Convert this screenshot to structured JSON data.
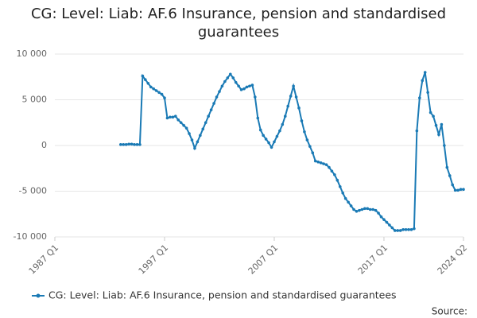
{
  "chart_data": {
    "type": "line",
    "title": "CG: Level: Liab: AF.6 Insurance, pension and standardised guarantees",
    "source": "Source:",
    "categories": [
      "1987 Q1",
      "1987 Q2",
      "1987 Q3",
      "1987 Q4",
      "1988 Q1",
      "1988 Q2",
      "1988 Q3",
      "1988 Q4",
      "1989 Q1",
      "1989 Q2",
      "1989 Q3",
      "1989 Q4",
      "1990 Q1",
      "1990 Q2",
      "1990 Q3",
      "1990 Q4",
      "1991 Q1",
      "1991 Q2",
      "1991 Q3",
      "1991 Q4",
      "1992 Q1",
      "1992 Q2",
      "1992 Q3",
      "1992 Q4",
      "1993 Q1",
      "1993 Q2",
      "1993 Q3",
      "1993 Q4",
      "1994 Q1",
      "1994 Q2",
      "1994 Q3",
      "1994 Q4",
      "1995 Q1",
      "1995 Q2",
      "1995 Q3",
      "1995 Q4",
      "1996 Q1",
      "1996 Q2",
      "1996 Q3",
      "1996 Q4",
      "1997 Q1",
      "1997 Q2",
      "1997 Q3",
      "1997 Q4",
      "1998 Q1",
      "1998 Q2",
      "1998 Q3",
      "1998 Q4",
      "1999 Q1",
      "1999 Q2",
      "1999 Q3",
      "1999 Q4",
      "2000 Q1",
      "2000 Q2",
      "2000 Q3",
      "2000 Q4",
      "2001 Q1",
      "2001 Q2",
      "2001 Q3",
      "2001 Q4",
      "2002 Q1",
      "2002 Q2",
      "2002 Q3",
      "2002 Q4",
      "2003 Q1",
      "2003 Q2",
      "2003 Q3",
      "2003 Q4",
      "2004 Q1",
      "2004 Q2",
      "2004 Q3",
      "2004 Q4",
      "2005 Q1",
      "2005 Q2",
      "2005 Q3",
      "2005 Q4",
      "2006 Q1",
      "2006 Q2",
      "2006 Q3",
      "2006 Q4",
      "2007 Q1",
      "2007 Q2",
      "2007 Q3",
      "2007 Q4",
      "2008 Q1",
      "2008 Q2",
      "2008 Q3",
      "2008 Q4",
      "2009 Q1",
      "2009 Q2",
      "2009 Q3",
      "2009 Q4",
      "2010 Q1",
      "2010 Q2",
      "2010 Q3",
      "2010 Q4",
      "2011 Q1",
      "2011 Q2",
      "2011 Q3",
      "2011 Q4",
      "2012 Q1",
      "2012 Q2",
      "2012 Q3",
      "2012 Q4",
      "2013 Q1",
      "2013 Q2",
      "2013 Q3",
      "2013 Q4",
      "2014 Q1",
      "2014 Q2",
      "2014 Q3",
      "2014 Q4",
      "2015 Q1",
      "2015 Q2",
      "2015 Q3",
      "2015 Q4",
      "2016 Q1",
      "2016 Q2",
      "2016 Q3",
      "2016 Q4",
      "2017 Q1",
      "2017 Q2",
      "2017 Q3",
      "2017 Q4",
      "2018 Q1",
      "2018 Q2",
      "2018 Q3",
      "2018 Q4",
      "2019 Q1",
      "2019 Q2",
      "2019 Q3",
      "2019 Q4",
      "2020 Q1",
      "2020 Q2",
      "2020 Q3",
      "2020 Q4",
      "2021 Q1",
      "2021 Q2",
      "2021 Q3",
      "2021 Q4",
      "2022 Q1",
      "2022 Q2",
      "2022 Q3",
      "2022 Q4",
      "2023 Q1",
      "2023 Q2",
      "2023 Q3",
      "2023 Q4",
      "2024 Q1",
      "2024 Q2"
    ],
    "series": [
      {
        "name": "CG: Level: Liab: AF.6 Insurance, pension and standardised guarantees",
        "color": "#1a7ab5",
        "values": [
          null,
          null,
          null,
          null,
          null,
          null,
          null,
          null,
          null,
          null,
          null,
          null,
          null,
          null,
          null,
          null,
          null,
          null,
          null,
          null,
          null,
          null,
          null,
          null,
          100,
          100,
          100,
          150,
          150,
          100,
          100,
          100,
          7600,
          7200,
          6800,
          6400,
          6200,
          6000,
          5800,
          5600,
          5200,
          3000,
          3100,
          3100,
          3200,
          2800,
          2500,
          2200,
          1900,
          1300,
          600,
          -300,
          400,
          1100,
          1800,
          2500,
          3200,
          3900,
          4600,
          5300,
          5900,
          6500,
          7000,
          7400,
          7800,
          7400,
          6900,
          6500,
          6100,
          6200,
          6400,
          6500,
          6600,
          5300,
          3000,
          1700,
          1100,
          700,
          300,
          -200,
          400,
          1000,
          1600,
          2300,
          3200,
          4300,
          5400,
          6500,
          5300,
          4100,
          2700,
          1500,
          600,
          -100,
          -800,
          -1700,
          -1800,
          -1900,
          -2000,
          -2100,
          -2400,
          -2800,
          -3200,
          -3800,
          -4500,
          -5200,
          -5800,
          -6200,
          -6600,
          -7000,
          -7200,
          -7100,
          -7000,
          -6900,
          -6900,
          -7000,
          -7000,
          -7100,
          -7400,
          -7800,
          -8100,
          -8400,
          -8700,
          -9000,
          -9300,
          -9300,
          -9300,
          -9200,
          -9200,
          -9200,
          -9200,
          -9100,
          1600,
          5200,
          7100,
          8000,
          5800,
          3600,
          3200,
          2200,
          1200,
          2300,
          0,
          -2400,
          -3300,
          -4300,
          -4900,
          -4900,
          -4800,
          -4800
        ]
      }
    ],
    "xticks": [
      "1987 Q1",
      "1997 Q1",
      "2007 Q1",
      "2017 Q1",
      "2024 Q2"
    ],
    "ylim": [
      -10000,
      10000
    ],
    "yticks": [
      {
        "value": -10000,
        "label": "-10 000"
      },
      {
        "value": -5000,
        "label": "-5 000"
      },
      0,
      {
        "value": 5000,
        "label": "5 000"
      },
      {
        "value": 10000,
        "label": "10 000"
      }
    ],
    "grid": true
  }
}
